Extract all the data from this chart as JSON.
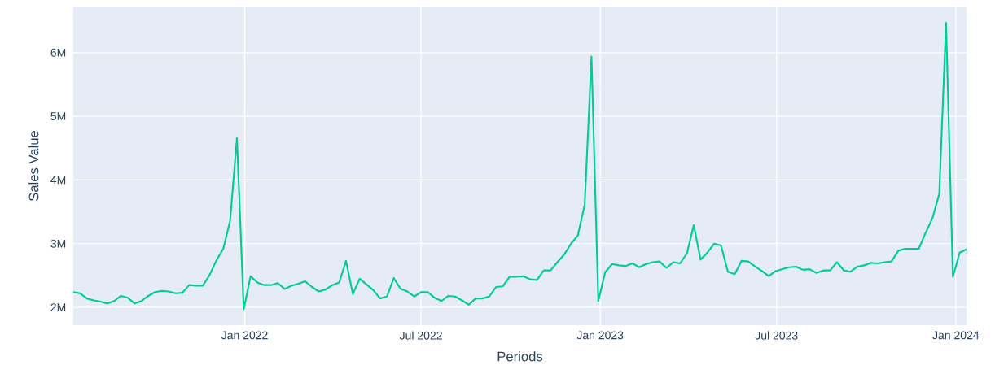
{
  "chart_data": {
    "type": "line",
    "xlabel": "Periods",
    "ylabel": "Sales Value",
    "x": [
      "2021-07-09",
      "2021-07-16",
      "2021-07-23",
      "2021-07-30",
      "2021-08-06",
      "2021-08-13",
      "2021-08-20",
      "2021-08-27",
      "2021-09-03",
      "2021-09-10",
      "2021-09-17",
      "2021-09-24",
      "2021-10-01",
      "2021-10-08",
      "2021-10-15",
      "2021-10-22",
      "2021-10-29",
      "2021-11-05",
      "2021-11-12",
      "2021-11-19",
      "2021-11-26",
      "2021-12-03",
      "2021-12-10",
      "2021-12-17",
      "2021-12-24",
      "2021-12-31",
      "2022-01-07",
      "2022-01-14",
      "2022-01-21",
      "2022-01-28",
      "2022-02-04",
      "2022-02-11",
      "2022-02-18",
      "2022-02-25",
      "2022-03-04",
      "2022-03-11",
      "2022-03-18",
      "2022-03-25",
      "2022-04-01",
      "2022-04-08",
      "2022-04-15",
      "2022-04-22",
      "2022-04-29",
      "2022-05-06",
      "2022-05-13",
      "2022-05-20",
      "2022-05-27",
      "2022-06-03",
      "2022-06-10",
      "2022-06-17",
      "2022-06-24",
      "2022-07-01",
      "2022-07-08",
      "2022-07-15",
      "2022-07-22",
      "2022-07-29",
      "2022-08-05",
      "2022-08-12",
      "2022-08-19",
      "2022-08-26",
      "2022-09-02",
      "2022-09-09",
      "2022-09-16",
      "2022-09-23",
      "2022-09-30",
      "2022-10-07",
      "2022-10-14",
      "2022-10-21",
      "2022-10-28",
      "2022-11-04",
      "2022-11-11",
      "2022-11-18",
      "2022-11-25",
      "2022-12-02",
      "2022-12-09",
      "2022-12-16",
      "2022-12-23",
      "2022-12-30",
      "2023-01-06",
      "2023-01-13",
      "2023-01-20",
      "2023-01-27",
      "2023-02-03",
      "2023-02-10",
      "2023-02-17",
      "2023-02-24",
      "2023-03-03",
      "2023-03-10",
      "2023-03-17",
      "2023-03-24",
      "2023-03-31",
      "2023-04-07",
      "2023-04-14",
      "2023-04-21",
      "2023-04-28",
      "2023-05-05",
      "2023-05-12",
      "2023-05-19",
      "2023-05-26",
      "2023-06-02",
      "2023-06-09",
      "2023-06-16",
      "2023-06-23",
      "2023-06-30",
      "2023-07-07",
      "2023-07-14",
      "2023-07-21",
      "2023-07-28",
      "2023-08-04",
      "2023-08-11",
      "2023-08-18",
      "2023-08-25",
      "2023-09-01",
      "2023-09-08",
      "2023-09-15",
      "2023-09-22",
      "2023-09-29",
      "2023-10-06",
      "2023-10-13",
      "2023-10-20",
      "2023-10-27",
      "2023-11-03",
      "2023-11-10",
      "2023-11-17",
      "2023-11-24",
      "2023-12-01",
      "2023-12-08",
      "2023-12-15",
      "2023-12-22",
      "2023-12-29",
      "2024-01-05",
      "2024-01-12"
    ],
    "series": [
      {
        "color": "#00cc96",
        "values": [
          2240000,
          2220000,
          2140000,
          2110000,
          2090000,
          2060000,
          2100000,
          2180000,
          2150000,
          2060000,
          2100000,
          2180000,
          2240000,
          2260000,
          2250000,
          2220000,
          2230000,
          2350000,
          2340000,
          2340000,
          2510000,
          2740000,
          2920000,
          3360000,
          4660000,
          1970000,
          2490000,
          2390000,
          2350000,
          2350000,
          2380000,
          2290000,
          2340000,
          2370000,
          2410000,
          2320000,
          2250000,
          2280000,
          2350000,
          2390000,
          2730000,
          2210000,
          2450000,
          2360000,
          2270000,
          2140000,
          2170000,
          2460000,
          2290000,
          2250000,
          2170000,
          2240000,
          2240000,
          2150000,
          2100000,
          2180000,
          2170000,
          2110000,
          2040000,
          2140000,
          2140000,
          2170000,
          2320000,
          2330000,
          2480000,
          2480000,
          2490000,
          2440000,
          2430000,
          2580000,
          2580000,
          2710000,
          2830000,
          3000000,
          3130000,
          3610000,
          5940000,
          2100000,
          2550000,
          2680000,
          2660000,
          2650000,
          2690000,
          2630000,
          2680000,
          2710000,
          2720000,
          2620000,
          2710000,
          2690000,
          2850000,
          3290000,
          2750000,
          2860000,
          3000000,
          2970000,
          2560000,
          2520000,
          2730000,
          2720000,
          2640000,
          2570000,
          2490000,
          2570000,
          2600000,
          2630000,
          2640000,
          2590000,
          2600000,
          2540000,
          2580000,
          2580000,
          2710000,
          2580000,
          2560000,
          2640000,
          2660000,
          2700000,
          2690000,
          2710000,
          2720000,
          2890000,
          2920000,
          2920000,
          2920000,
          3170000,
          3400000,
          3780000,
          6470000,
          2480000,
          2860000,
          2910000
        ]
      }
    ],
    "xlim": [
      "2021-07-09",
      "2024-01-12"
    ],
    "xticks": [
      {
        "value": "2022-01-01",
        "label": "Jan 2022"
      },
      {
        "value": "2022-07-01",
        "label": "Jul 2022"
      },
      {
        "value": "2023-01-01",
        "label": "Jan 2023"
      },
      {
        "value": "2023-07-01",
        "label": "Jul 2023"
      },
      {
        "value": "2024-01-01",
        "label": "Jan 2024"
      }
    ],
    "ylim": [
      1720000,
      6725000
    ],
    "yticks": [
      {
        "value": 2000000,
        "label": "2M"
      },
      {
        "value": 3000000,
        "label": "3M"
      },
      {
        "value": 4000000,
        "label": "4M"
      },
      {
        "value": 5000000,
        "label": "5M"
      },
      {
        "value": 6000000,
        "label": "6M"
      }
    ],
    "grid": true
  }
}
